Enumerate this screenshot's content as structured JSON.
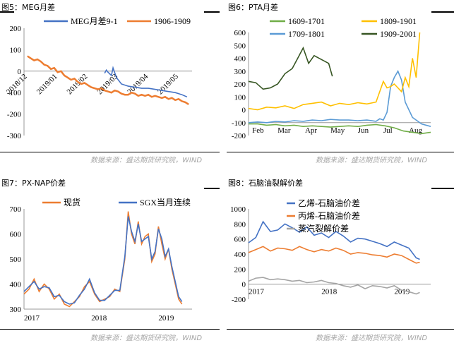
{
  "source_text": "数据来源：盛达期货研究院，WIND",
  "charts": [
    {
      "title": "图5：MEG月差",
      "chart_data": {
        "type": "line",
        "xlim": [
          0,
          1
        ],
        "ylim": [
          -300,
          200
        ],
        "yticks": [
          -300,
          -200,
          -100,
          0,
          100,
          200
        ],
        "xtick_labels": [
          "2018/12",
          "2019/01",
          "2019/02",
          "2019/03",
          "2019/04",
          "2019/05"
        ],
        "xtick_pos": [
          0.02,
          0.2,
          0.38,
          0.56,
          0.74,
          0.92
        ],
        "series": [
          {
            "name": "MEG月差9-1",
            "color": "#4472c4",
            "x": [
              0.48,
              0.49,
              0.5,
              0.52,
              0.53,
              0.55,
              0.58,
              0.62,
              0.66,
              0.7,
              0.74,
              0.78,
              0.82,
              0.86,
              0.9,
              0.94,
              0.97
            ],
            "y": [
              -10,
              5,
              -5,
              -20,
              15,
              -30,
              -60,
              -70,
              -75,
              -80,
              -80,
              -85,
              -90,
              -95,
              -100,
              -110,
              -120
            ]
          },
          {
            "name": "1906-1909",
            "color": "#ed7d31",
            "x": [
              0.02,
              0.04,
              0.06,
              0.08,
              0.1,
              0.12,
              0.14,
              0.16,
              0.18,
              0.2,
              0.22,
              0.24,
              0.26,
              0.28,
              0.3,
              0.32,
              0.34,
              0.36,
              0.38,
              0.4,
              0.42,
              0.44,
              0.46,
              0.48,
              0.5,
              0.52,
              0.54,
              0.56,
              0.58,
              0.6,
              0.62,
              0.64,
              0.66,
              0.68,
              0.7,
              0.72,
              0.74,
              0.76,
              0.78,
              0.8,
              0.82,
              0.84,
              0.86,
              0.88,
              0.9,
              0.92,
              0.94,
              0.96,
              0.98
            ],
            "y": [
              70,
              60,
              50,
              55,
              45,
              30,
              25,
              10,
              15,
              -5,
              0,
              -20,
              -30,
              -40,
              -35,
              -50,
              -60,
              -55,
              -65,
              -75,
              -80,
              -85,
              -80,
              -90,
              -95,
              -100,
              -90,
              -95,
              -105,
              -110,
              -110,
              -100,
              -105,
              -115,
              -110,
              -115,
              -110,
              -120,
              -115,
              -120,
              -125,
              -120,
              -130,
              -125,
              -135,
              -130,
              -140,
              -145,
              -155
            ]
          }
        ]
      }
    },
    {
      "title": "图6：PTA月差",
      "chart_data": {
        "type": "line",
        "xlim": [
          0,
          1
        ],
        "ylim": [
          -200,
          600
        ],
        "yticks": [
          -200,
          -100,
          0,
          100,
          200,
          300,
          400,
          500,
          600
        ],
        "xtick_labels": [
          "Feb",
          "Mar",
          "Apr",
          "May",
          "Jun",
          "Jul",
          "Aug"
        ],
        "xtick_pos": [
          0.02,
          0.16,
          0.31,
          0.45,
          0.6,
          0.74,
          0.88
        ],
        "series": [
          {
            "name": "1609-1701",
            "color": "#70ad47",
            "x": [
              0.0,
              0.05,
              0.1,
              0.15,
              0.2,
              0.25,
              0.3,
              0.35,
              0.4,
              0.45,
              0.5,
              0.55,
              0.6,
              0.65,
              0.7,
              0.75,
              0.8,
              0.85,
              0.9,
              0.95,
              1.0
            ],
            "y": [
              -110,
              -110,
              -120,
              -115,
              -125,
              -120,
              -130,
              -125,
              -130,
              -135,
              -130,
              -125,
              -130,
              -120,
              -115,
              -125,
              -140,
              -165,
              -175,
              -185,
              -175
            ]
          },
          {
            "name": "1709-1801",
            "color": "#5b9bd5",
            "x": [
              0.0,
              0.05,
              0.1,
              0.15,
              0.2,
              0.25,
              0.3,
              0.35,
              0.4,
              0.45,
              0.5,
              0.55,
              0.6,
              0.65,
              0.7,
              0.72,
              0.74,
              0.76,
              0.78,
              0.8,
              0.82,
              0.84,
              0.86,
              0.9,
              0.95,
              1.0
            ],
            "y": [
              -100,
              -95,
              -100,
              -90,
              -95,
              -85,
              -90,
              -80,
              -85,
              -75,
              -80,
              -80,
              -85,
              -80,
              -90,
              -70,
              -80,
              -20,
              180,
              250,
              300,
              230,
              60,
              -60,
              -110,
              -130
            ]
          },
          {
            "name": "1809-1901",
            "color": "#ffc000",
            "x": [
              0.0,
              0.05,
              0.1,
              0.15,
              0.2,
              0.25,
              0.3,
              0.35,
              0.4,
              0.45,
              0.5,
              0.55,
              0.6,
              0.65,
              0.7,
              0.72,
              0.74,
              0.76,
              0.78,
              0.8,
              0.82,
              0.84,
              0.86,
              0.88,
              0.9,
              0.92,
              0.94
            ],
            "y": [
              10,
              0,
              20,
              15,
              30,
              10,
              40,
              50,
              60,
              30,
              50,
              40,
              55,
              45,
              60,
              140,
              220,
              170,
              180,
              200,
              170,
              140,
              250,
              180,
              400,
              250,
              600
            ]
          },
          {
            "name": "1909-2001",
            "color": "#375623",
            "x": [
              0.0,
              0.04,
              0.08,
              0.12,
              0.16,
              0.2,
              0.24,
              0.27,
              0.3,
              0.33,
              0.36,
              0.4,
              0.44,
              0.46
            ],
            "y": [
              220,
              210,
              160,
              170,
              200,
              280,
              320,
              400,
              480,
              360,
              420,
              390,
              360,
              260
            ]
          }
        ]
      }
    },
    {
      "title": "图7：PX-NAP价差",
      "chart_data": {
        "type": "line",
        "xlim": [
          0,
          1
        ],
        "ylim": [
          300,
          700
        ],
        "yticks": [
          300,
          400,
          500,
          600,
          700
        ],
        "xtick_labels": [
          "2017",
          "2018",
          "2019"
        ],
        "xtick_pos": [
          0.0,
          0.4,
          0.8
        ],
        "series": [
          {
            "name": "现货",
            "color": "#ed7d31",
            "x": [
              0.0,
              0.03,
              0.06,
              0.09,
              0.12,
              0.15,
              0.18,
              0.21,
              0.24,
              0.27,
              0.3,
              0.33,
              0.36,
              0.39,
              0.42,
              0.45,
              0.48,
              0.51,
              0.54,
              0.57,
              0.6,
              0.62,
              0.64,
              0.66,
              0.68,
              0.7,
              0.72,
              0.74,
              0.76,
              0.78,
              0.8,
              0.82,
              0.84,
              0.86,
              0.88,
              0.9,
              0.92,
              0.94
            ],
            "y": [
              360,
              380,
              420,
              370,
              400,
              380,
              340,
              360,
              320,
              310,
              330,
              350,
              390,
              410,
              360,
              330,
              340,
              350,
              380,
              370,
              500,
              690,
              600,
              560,
              650,
              560,
              590,
              600,
              490,
              520,
              630,
              560,
              500,
              540,
              460,
              400,
              340,
              320
            ]
          },
          {
            "name": "SGX当月连续",
            "color": "#4472c4",
            "x": [
              0.0,
              0.03,
              0.06,
              0.09,
              0.12,
              0.15,
              0.18,
              0.21,
              0.24,
              0.27,
              0.3,
              0.33,
              0.36,
              0.39,
              0.42,
              0.45,
              0.48,
              0.51,
              0.54,
              0.57,
              0.6,
              0.62,
              0.64,
              0.66,
              0.68,
              0.7,
              0.72,
              0.74,
              0.76,
              0.78,
              0.8,
              0.82,
              0.84,
              0.86,
              0.88,
              0.9,
              0.92,
              0.94
            ],
            "y": [
              370,
              390,
              410,
              380,
              390,
              385,
              350,
              355,
              330,
              320,
              325,
              355,
              380,
              420,
              365,
              335,
              335,
              355,
              375,
              375,
              510,
              670,
              610,
              570,
              640,
              570,
              580,
              590,
              500,
              530,
              620,
              580,
              510,
              540,
              470,
              410,
              350,
              330
            ]
          }
        ]
      }
    },
    {
      "title": "图8：石脑油裂解价差",
      "chart_data": {
        "type": "line",
        "xlim": [
          0,
          1
        ],
        "ylim": [
          -200,
          1000
        ],
        "yticks": [
          -200,
          0,
          200,
          400,
          600,
          800,
          1000
        ],
        "xtick_labels": [
          "2017",
          "2018",
          "2019"
        ],
        "xtick_pos": [
          0.0,
          0.4,
          0.8
        ],
        "series": [
          {
            "name": "乙烯-石脑油价差",
            "color": "#4472c4",
            "x": [
              0.0,
              0.04,
              0.08,
              0.12,
              0.16,
              0.2,
              0.24,
              0.28,
              0.32,
              0.36,
              0.4,
              0.44,
              0.48,
              0.52,
              0.56,
              0.6,
              0.64,
              0.68,
              0.72,
              0.76,
              0.8,
              0.84,
              0.88,
              0.92,
              0.94
            ],
            "y": [
              550,
              620,
              830,
              700,
              720,
              800,
              750,
              690,
              760,
              650,
              680,
              620,
              700,
              640,
              560,
              610,
              600,
              570,
              540,
              500,
              560,
              520,
              480,
              350,
              330
            ]
          },
          {
            "name": "丙烯-石脑油价差",
            "color": "#ed7d31",
            "x": [
              0.0,
              0.04,
              0.08,
              0.12,
              0.16,
              0.2,
              0.24,
              0.28,
              0.32,
              0.36,
              0.4,
              0.44,
              0.48,
              0.52,
              0.56,
              0.6,
              0.64,
              0.68,
              0.72,
              0.76,
              0.8,
              0.84,
              0.88,
              0.92,
              0.94
            ],
            "y": [
              420,
              460,
              500,
              440,
              480,
              470,
              450,
              500,
              460,
              430,
              460,
              440,
              480,
              450,
              400,
              420,
              410,
              390,
              380,
              360,
              400,
              380,
              330,
              280,
              290
            ]
          },
          {
            "name": "蒸汽裂解价差",
            "color": "#a5a5a5",
            "x": [
              0.0,
              0.04,
              0.08,
              0.12,
              0.16,
              0.2,
              0.24,
              0.28,
              0.32,
              0.36,
              0.4,
              0.44,
              0.48,
              0.52,
              0.56,
              0.6,
              0.64,
              0.68,
              0.72,
              0.76,
              0.8,
              0.84,
              0.88,
              0.92,
              0.94
            ],
            "y": [
              40,
              80,
              90,
              60,
              70,
              60,
              40,
              50,
              20,
              30,
              50,
              20,
              10,
              -20,
              -40,
              -10,
              -60,
              -20,
              -30,
              -50,
              -20,
              -80,
              -100,
              -130,
              -110
            ]
          }
        ]
      }
    }
  ]
}
